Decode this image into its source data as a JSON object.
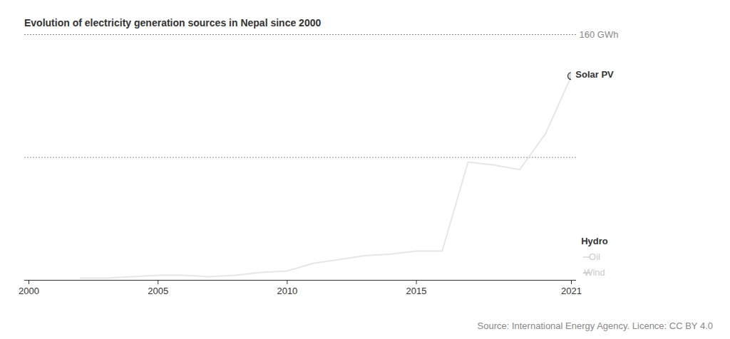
{
  "chart_data": {
    "type": "line",
    "title": "Evolution of electricity generation sources in Nepal since 2000",
    "caption": "Source: International Energy Agency. Licence: CC BY 4.0",
    "x": [
      2000,
      2001,
      2002,
      2003,
      2004,
      2005,
      2006,
      2007,
      2008,
      2009,
      2010,
      2011,
      2012,
      2013,
      2014,
      2015,
      2016,
      2017,
      2018,
      2019,
      2020,
      2021
    ],
    "series": [
      {
        "name": "Solar PV",
        "color": "#e6e6e6",
        "marker": "end_circle",
        "values": [
          null,
          null,
          1.4,
          1.4,
          2.3,
          3.2,
          3.2,
          2.3,
          3.2,
          5.1,
          6,
          11,
          13.5,
          16,
          17,
          19,
          19,
          77,
          75,
          72,
          95.5,
          133
        ]
      },
      {
        "name": "Hydro",
        "color": "#cccccc",
        "values": [
          null,
          null,
          null,
          null,
          null,
          null,
          null,
          null,
          null,
          null,
          null,
          null,
          null,
          null,
          null,
          null,
          null,
          null,
          null,
          null,
          null,
          null
        ]
      },
      {
        "name": "Oil",
        "color": "#e0e0e0",
        "values": [
          null,
          null,
          null,
          null,
          null,
          null,
          null,
          null,
          null,
          null,
          null,
          null,
          null,
          null,
          null,
          null,
          null,
          null,
          null,
          null,
          null,
          null
        ]
      },
      {
        "name": "Wind",
        "color": "#cccccc",
        "values": [
          null,
          null,
          null,
          null,
          null,
          null,
          null,
          null,
          null,
          null,
          null,
          null,
          null,
          null,
          null,
          null,
          null,
          null,
          null,
          null,
          null,
          null
        ]
      }
    ],
    "xlim": [
      2000,
      2021
    ],
    "xticks": [
      2000,
      2005,
      2010,
      2015,
      2021
    ],
    "ylim": [
      0,
      160
    ],
    "yticks": [
      {
        "value": 80,
        "label": null
      },
      {
        "value": 160,
        "label": "160 GWh"
      }
    ],
    "grid": true,
    "tick_labels": "x"
  }
}
